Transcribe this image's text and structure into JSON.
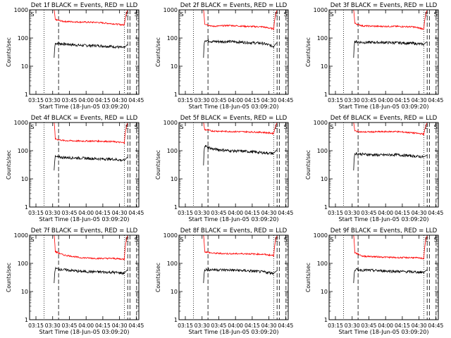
{
  "figure": {
    "tick_labels_y": [
      "1000",
      "100",
      "10",
      "1"
    ],
    "tick_labels_x": [
      "03:15",
      "03:30",
      "03:45",
      "04:00",
      "04:15",
      "04:30",
      "04:45"
    ],
    "ylabel": "Counts/sec",
    "xlabel": "Start Time (18-Jun-05 03:09:20)",
    "marker_S": "S",
    "marker_E": "E",
    "colors": {
      "events": "#000000",
      "lld": "#ff0000"
    }
  },
  "chart_data": [
    {
      "type": "line",
      "title": "Det 1f BLACK = Events, RED = LLD",
      "xlabel": "Start Time (18-Jun-05 03:09:20)",
      "ylabel": "Counts/sec",
      "yscale": "log",
      "ylim": [
        1,
        1000
      ],
      "xlim_minutes_from_start": [
        0,
        98
      ],
      "x": [
        22,
        23,
        30,
        45,
        60,
        75,
        85,
        88
      ],
      "series": [
        {
          "name": "Events",
          "color": "#000000",
          "values": [
            20,
            65,
            62,
            55,
            54,
            50,
            45,
            60
          ]
        },
        {
          "name": "LLD",
          "color": "#ff0000",
          "values": [
            1000,
            450,
            390,
            370,
            360,
            320,
            290,
            1000
          ]
        }
      ],
      "vlines_dotted": [
        13,
        85
      ],
      "vlines_dashed": [
        26,
        88,
        90,
        96
      ]
    },
    {
      "type": "line",
      "title": "Det 2f BLACK = Events, RED = LLD",
      "xlabel": "Start Time (18-Jun-05 03:09:20)",
      "ylabel": "Counts/sec",
      "yscale": "log",
      "ylim": [
        1,
        1000
      ],
      "xlim_minutes_from_start": [
        0,
        98
      ],
      "x": [
        22,
        23,
        30,
        45,
        60,
        75,
        85,
        88
      ],
      "series": [
        {
          "name": "Events",
          "color": "#000000",
          "values": [
            20,
            85,
            75,
            75,
            70,
            65,
            50,
            70
          ]
        },
        {
          "name": "LLD",
          "color": "#ff0000",
          "values": [
            1000,
            320,
            260,
            280,
            260,
            250,
            210,
            1000
          ]
        }
      ],
      "vlines_dotted": [
        13,
        85
      ],
      "vlines_dashed": [
        26,
        88,
        90,
        96
      ]
    },
    {
      "type": "line",
      "title": "Det 3f BLACK = Events, RED = LLD",
      "xlabel": "Start Time (18-Jun-05 03:09:20)",
      "ylabel": "Counts/sec",
      "yscale": "log",
      "ylim": [
        1,
        1000
      ],
      "xlim_minutes_from_start": [
        0,
        98
      ],
      "x": [
        22,
        23,
        30,
        45,
        60,
        75,
        85,
        88
      ],
      "series": [
        {
          "name": "Events",
          "color": "#000000",
          "values": [
            20,
            75,
            70,
            70,
            68,
            65,
            60,
            75
          ]
        },
        {
          "name": "LLD",
          "color": "#ff0000",
          "values": [
            1000,
            330,
            270,
            260,
            260,
            250,
            210,
            1000
          ]
        }
      ],
      "vlines_dotted": [
        13,
        85
      ],
      "vlines_dashed": [
        26,
        88,
        90,
        96
      ]
    },
    {
      "type": "line",
      "title": "Det 4f BLACK = Events, RED = LLD",
      "xlabel": "Start Time (18-Jun-05 03:09:20)",
      "ylabel": "Counts/sec",
      "yscale": "log",
      "ylim": [
        1,
        1000
      ],
      "xlim_minutes_from_start": [
        0,
        98
      ],
      "x": [
        22,
        23,
        30,
        45,
        60,
        75,
        85,
        88
      ],
      "series": [
        {
          "name": "Events",
          "color": "#000000",
          "values": [
            20,
            60,
            58,
            55,
            52,
            50,
            45,
            60
          ]
        },
        {
          "name": "LLD",
          "color": "#ff0000",
          "values": [
            1000,
            260,
            230,
            220,
            220,
            210,
            190,
            1000
          ]
        }
      ],
      "vlines_dotted": [
        13,
        85
      ],
      "vlines_dashed": [
        26,
        88,
        90,
        96
      ]
    },
    {
      "type": "line",
      "title": "Det 5f BLACK = Events, RED = LLD",
      "xlabel": "Start Time (18-Jun-05 03:09:20)",
      "ylabel": "Counts/sec",
      "yscale": "log",
      "ylim": [
        1,
        1000
      ],
      "xlim_minutes_from_start": [
        0,
        98
      ],
      "x": [
        22,
        23,
        30,
        45,
        60,
        75,
        85,
        88
      ],
      "series": [
        {
          "name": "Events",
          "color": "#000000",
          "values": [
            30,
            150,
            115,
            100,
            95,
            85,
            80,
            110
          ]
        },
        {
          "name": "LLD",
          "color": "#ff0000",
          "values": [
            1000,
            560,
            500,
            480,
            470,
            450,
            410,
            1000
          ]
        }
      ],
      "vlines_dotted": [
        13,
        85
      ],
      "vlines_dashed": [
        26,
        88,
        90,
        96
      ]
    },
    {
      "type": "line",
      "title": "Det 6f BLACK = Events, RED = LLD",
      "xlabel": "Start Time (18-Jun-05 03:09:20)",
      "ylabel": "Counts/sec",
      "yscale": "log",
      "ylim": [
        1,
        1000
      ],
      "xlim_minutes_from_start": [
        0,
        98
      ],
      "x": [
        22,
        23,
        30,
        45,
        60,
        75,
        85,
        88
      ],
      "series": [
        {
          "name": "Events",
          "color": "#000000",
          "values": [
            20,
            80,
            75,
            70,
            72,
            65,
            60,
            70
          ]
        },
        {
          "name": "LLD",
          "color": "#ff0000",
          "values": [
            1000,
            500,
            460,
            470,
            480,
            430,
            390,
            1000
          ]
        }
      ],
      "vlines_dotted": [
        13,
        85
      ],
      "vlines_dashed": [
        26,
        88,
        90,
        96
      ]
    },
    {
      "type": "line",
      "title": "Det 7f BLACK = Events, RED = LLD",
      "xlabel": "Start Time (18-Jun-05 03:09:20)",
      "ylabel": "Counts/sec",
      "yscale": "log",
      "ylim": [
        1,
        1000
      ],
      "xlim_minutes_from_start": [
        0,
        98
      ],
      "x": [
        22,
        23,
        30,
        45,
        60,
        75,
        85,
        88
      ],
      "series": [
        {
          "name": "Events",
          "color": "#000000",
          "values": [
            20,
            65,
            60,
            52,
            50,
            48,
            45,
            60
          ]
        },
        {
          "name": "LLD",
          "color": "#ff0000",
          "values": [
            1000,
            260,
            200,
            160,
            150,
            150,
            140,
            1000
          ]
        }
      ],
      "vlines_dotted": [
        13,
        85
      ],
      "vlines_dashed": [
        26,
        88,
        90,
        96
      ]
    },
    {
      "type": "line",
      "title": "Det 8f BLACK = Events, RED = LLD",
      "xlabel": "Start Time (18-Jun-05 03:09:20)",
      "ylabel": "Counts/sec",
      "yscale": "log",
      "ylim": [
        1,
        1000
      ],
      "xlim_minutes_from_start": [
        0,
        98
      ],
      "x": [
        22,
        23,
        30,
        45,
        60,
        75,
        85,
        88
      ],
      "series": [
        {
          "name": "Events",
          "color": "#000000",
          "values": [
            20,
            60,
            60,
            58,
            55,
            50,
            45,
            55
          ]
        },
        {
          "name": "LLD",
          "color": "#ff0000",
          "values": [
            1000,
            260,
            230,
            220,
            220,
            210,
            190,
            1000
          ]
        }
      ],
      "vlines_dotted": [
        13,
        85
      ],
      "vlines_dashed": [
        26,
        88,
        90,
        96
      ]
    },
    {
      "type": "line",
      "title": "Det 9f BLACK = Events, RED = LLD",
      "xlabel": "Start Time (18-Jun-05 03:09:20)",
      "ylabel": "Counts/sec",
      "yscale": "log",
      "ylim": [
        1,
        1000
      ],
      "xlim_minutes_from_start": [
        0,
        98
      ],
      "x": [
        22,
        23,
        30,
        45,
        60,
        75,
        85,
        88
      ],
      "series": [
        {
          "name": "Events",
          "color": "#000000",
          "values": [
            20,
            60,
            58,
            55,
            52,
            50,
            48,
            60
          ]
        },
        {
          "name": "LLD",
          "color": "#ff0000",
          "values": [
            1000,
            240,
            180,
            170,
            160,
            160,
            150,
            1000
          ]
        }
      ],
      "vlines_dotted": [
        13,
        85
      ],
      "vlines_dashed": [
        26,
        88,
        90,
        96
      ]
    }
  ]
}
